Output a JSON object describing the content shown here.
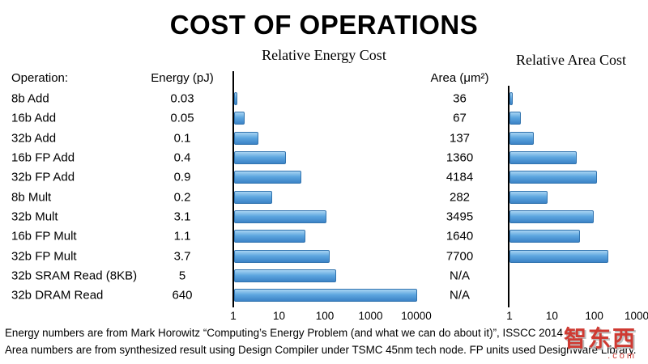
{
  "slide": {
    "title": "COST OF OPERATIONS",
    "footnotes": [
      "Energy numbers are from Mark Horowitz “Computing’s Energy Problem (and what we can do about it)”, ISSCC 2014",
      "Area numbers are from synthesized result using Design Compiler under TSMC 45nm tech node. FP units used DesignWare Library."
    ],
    "watermark": {
      "text": "智东西",
      "suffix": ".com",
      "color": "#cf3a32"
    }
  },
  "table": {
    "headers": {
      "operation": "Operation:",
      "energy": "Energy (pJ)",
      "area": "Area (μm²)"
    },
    "rows": [
      {
        "op": "8b Add",
        "energy": "0.03",
        "area": "36"
      },
      {
        "op": "16b Add",
        "energy": "0.05",
        "area": "67"
      },
      {
        "op": "32b Add",
        "energy": "0.1",
        "area": "137"
      },
      {
        "op": "16b FP Add",
        "energy": "0.4",
        "area": "1360"
      },
      {
        "op": "32b FP Add",
        "energy": "0.9",
        "area": "4184"
      },
      {
        "op": "8b Mult",
        "energy": "0.2",
        "area": "282"
      },
      {
        "op": "32b Mult",
        "energy": "3.1",
        "area": "3495"
      },
      {
        "op": "16b FP Mult",
        "energy": "1.1",
        "area": "1640"
      },
      {
        "op": "32b FP Mult",
        "energy": "3.7",
        "area": "7700"
      },
      {
        "op": "32b SRAM Read (8KB)",
        "energy": "5",
        "area": "N/A"
      },
      {
        "op": "32b DRAM Read",
        "energy": "640",
        "area": "N/A"
      }
    ]
  },
  "charts": {
    "bar_gradient": [
      "#a8d3f2",
      "#5ea7e0",
      "#3c83c6"
    ],
    "bar_border": "#3173ae"
  },
  "chart_data": [
    {
      "type": "bar",
      "title": "Relative Energy Cost",
      "orientation": "horizontal",
      "xscale": "log",
      "xlim": [
        1,
        10000
      ],
      "xticks": [
        "1",
        "10",
        "100",
        "1000",
        "10000"
      ],
      "categories": [
        "8b Add",
        "16b Add",
        "32b Add",
        "16b FP Add",
        "32b FP Add",
        "8b Mult",
        "32b Mult",
        "16b FP Mult",
        "32b FP Mult",
        "32b SRAM Read (8KB)",
        "32b DRAM Read"
      ],
      "energy_pj": [
        0.03,
        0.05,
        0.1,
        0.4,
        0.9,
        0.2,
        3.1,
        1.1,
        3.7,
        5,
        640
      ],
      "values": [
        1,
        1.67,
        3.33,
        13.33,
        30,
        6.67,
        103.33,
        36.67,
        123.33,
        166.67,
        21333
      ]
    },
    {
      "type": "bar",
      "title": "Relative Area Cost",
      "orientation": "horizontal",
      "xscale": "log",
      "xlim": [
        1,
        1000
      ],
      "xticks": [
        "1",
        "10",
        "100",
        "1000"
      ],
      "categories": [
        "8b Add",
        "16b Add",
        "32b Add",
        "16b FP Add",
        "32b FP Add",
        "8b Mult",
        "32b Mult",
        "16b FP Mult",
        "32b FP Mult",
        "32b SRAM Read (8KB)",
        "32b DRAM Read"
      ],
      "area_um2": [
        36,
        67,
        137,
        1360,
        4184,
        282,
        3495,
        1640,
        7700,
        null,
        null
      ],
      "values": [
        1,
        1.86,
        3.81,
        37.78,
        116.22,
        7.83,
        97.08,
        45.56,
        213.89,
        null,
        null
      ]
    }
  ]
}
